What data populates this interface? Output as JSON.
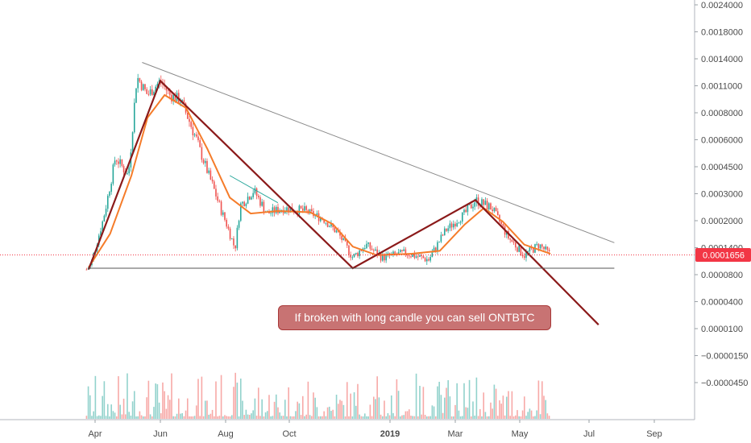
{
  "chart_data": {
    "type": "candlestick",
    "symbol": "ONTBTC",
    "scale": "log",
    "grid": false,
    "y_ticks": [
      "0.0024000",
      "0.0018000",
      "0.0014000",
      "0.0011000",
      "0.0008000",
      "0.0006000",
      "0.0004500",
      "0.0003000",
      "0.0002000",
      "0.0001400",
      "0.0000800",
      "0.0000400",
      "0.0000100",
      "−0.0000150",
      "−0.0000450"
    ],
    "x_ticks": [
      "Apr",
      "Jun",
      "Aug",
      "Oct",
      "2019",
      "Mar",
      "May",
      "Jul",
      "Sep"
    ],
    "last_price": "0.0001656",
    "annotation": "If broken with long candle you can sell ONTBTC",
    "colors": {
      "up": "#26a69a",
      "down": "#ef5350",
      "ema": "#f57c2a",
      "pattern": "#8b1a1a",
      "trendline": "#888888",
      "support": "#555555",
      "price_tag": "#f23645",
      "callout_fill": "#c87373"
    },
    "price_path": [
      {
        "t": "2018-03-24",
        "price": 0.000135
      },
      {
        "t": "2018-03-28",
        "price": 0.000145
      },
      {
        "t": "2018-04-08",
        "price": 0.00026
      },
      {
        "t": "2018-04-20",
        "price": 0.00055
      },
      {
        "t": "2018-05-02",
        "price": 0.00045
      },
      {
        "t": "2018-05-10",
        "price": 0.0012
      },
      {
        "t": "2018-05-20",
        "price": 0.001
      },
      {
        "t": "2018-06-01",
        "price": 0.00115
      },
      {
        "t": "2018-06-10",
        "price": 0.001
      },
      {
        "t": "2018-06-20",
        "price": 0.00095
      },
      {
        "t": "2018-07-05",
        "price": 0.00065
      },
      {
        "t": "2018-07-20",
        "price": 0.0004
      },
      {
        "t": "2018-08-01",
        "price": 0.00026
      },
      {
        "t": "2018-08-10",
        "price": 0.00018
      },
      {
        "t": "2018-08-15",
        "price": 0.00032
      },
      {
        "t": "2018-08-28",
        "price": 0.00038
      },
      {
        "t": "2018-09-10",
        "price": 0.00029
      },
      {
        "t": "2018-09-25",
        "price": 0.00031
      },
      {
        "t": "2018-10-15",
        "price": 0.0003
      },
      {
        "t": "2018-11-01",
        "price": 0.00027
      },
      {
        "t": "2018-11-15",
        "price": 0.00022
      },
      {
        "t": "2018-11-28",
        "price": 0.00016
      },
      {
        "t": "2018-12-10",
        "price": 0.00019
      },
      {
        "t": "2018-12-25",
        "price": 0.00016
      },
      {
        "t": "2019-01-15",
        "price": 0.00017
      },
      {
        "t": "2019-02-05",
        "price": 0.000155
      },
      {
        "t": "2019-02-20",
        "price": 0.00023
      },
      {
        "t": "2019-03-10",
        "price": 0.00029
      },
      {
        "t": "2019-03-20",
        "price": 0.00034
      },
      {
        "t": "2019-04-05",
        "price": 0.00031
      },
      {
        "t": "2019-04-20",
        "price": 0.00021
      },
      {
        "t": "2019-05-05",
        "price": 0.000165
      },
      {
        "t": "2019-05-18",
        "price": 0.00019
      },
      {
        "t": "2019-05-28",
        "price": 0.0001656
      }
    ],
    "ema_path": [
      {
        "t": "2018-03-26",
        "price": 0.00014
      },
      {
        "t": "2018-04-15",
        "price": 0.00022
      },
      {
        "t": "2018-05-05",
        "price": 0.00045
      },
      {
        "t": "2018-05-20",
        "price": 0.0008
      },
      {
        "t": "2018-06-05",
        "price": 0.001
      },
      {
        "t": "2018-06-25",
        "price": 0.00088
      },
      {
        "t": "2018-07-15",
        "price": 0.0006
      },
      {
        "t": "2018-08-05",
        "price": 0.00035
      },
      {
        "t": "2018-08-25",
        "price": 0.00029
      },
      {
        "t": "2018-09-20",
        "price": 0.0003
      },
      {
        "t": "2018-10-20",
        "price": 0.000295
      },
      {
        "t": "2018-11-10",
        "price": 0.00025
      },
      {
        "t": "2018-11-28",
        "price": 0.000185
      },
      {
        "t": "2018-12-20",
        "price": 0.000165
      },
      {
        "t": "2019-01-20",
        "price": 0.000168
      },
      {
        "t": "2019-02-15",
        "price": 0.000175
      },
      {
        "t": "2019-03-10",
        "price": 0.00025
      },
      {
        "t": "2019-03-28",
        "price": 0.00031
      },
      {
        "t": "2019-04-15",
        "price": 0.00026
      },
      {
        "t": "2019-05-05",
        "price": 0.00019
      },
      {
        "t": "2019-05-28",
        "price": 0.000168
      }
    ],
    "pattern_lines": [
      {
        "name": "zigzag",
        "color": "pattern",
        "points": [
          {
            "t": "2018-03-26",
            "price": 0.000135
          },
          {
            "t": "2018-06-01",
            "price": 0.00115
          },
          {
            "t": "2018-11-28",
            "price": 0.000138
          },
          {
            "t": "2019-03-20",
            "price": 0.00034
          },
          {
            "t": "2019-07-10",
            "price": 4.3e-05
          }
        ]
      },
      {
        "name": "upper-trendline",
        "color": "trendline",
        "points": [
          {
            "t": "2018-05-15",
            "price": 0.00138
          },
          {
            "t": "2019-07-25",
            "price": 0.000195
          }
        ]
      },
      {
        "name": "support-line",
        "color": "support",
        "points": [
          {
            "t": "2018-03-26",
            "price": 0.000138
          },
          {
            "t": "2019-07-25",
            "price": 0.000138
          }
        ]
      },
      {
        "name": "minor-trendline",
        "color": "up",
        "points": [
          {
            "t": "2018-08-05",
            "price": 0.00045
          },
          {
            "t": "2018-09-20",
            "price": 0.00033
          }
        ]
      }
    ]
  }
}
